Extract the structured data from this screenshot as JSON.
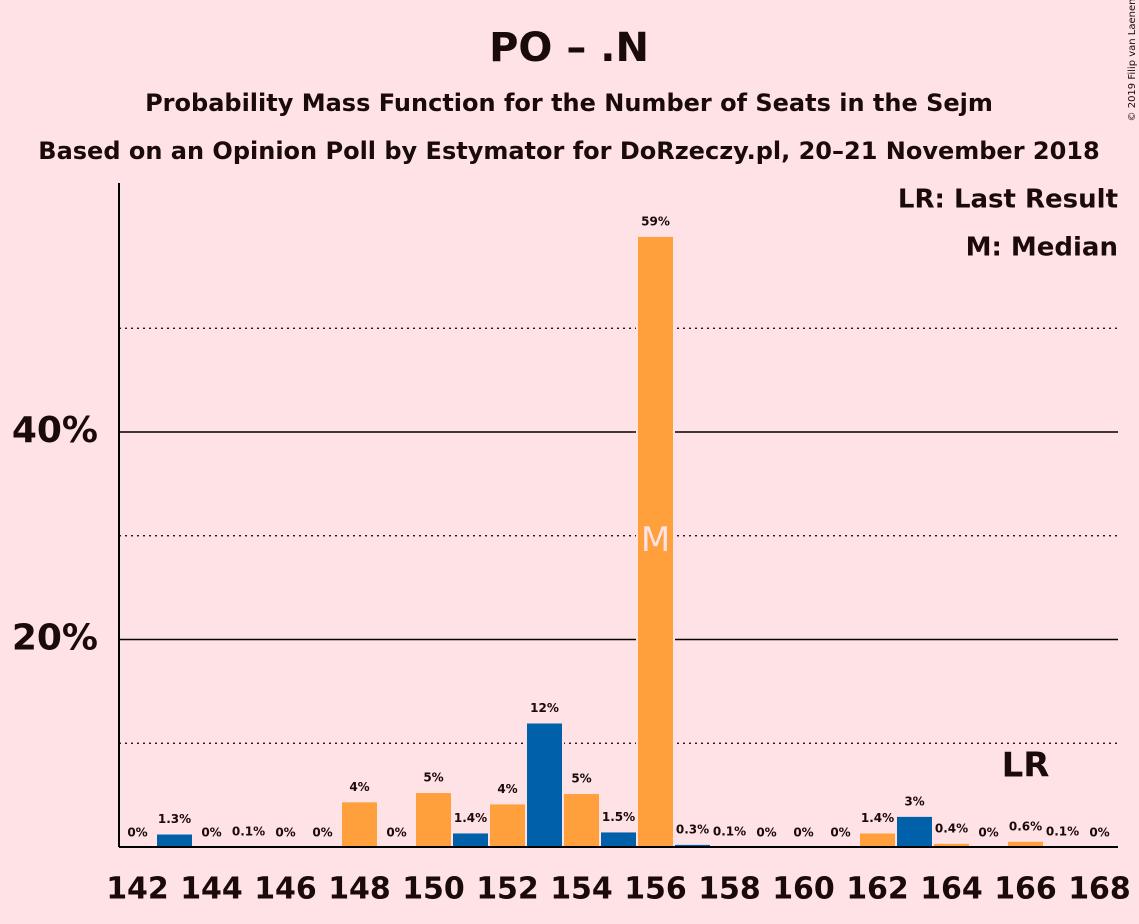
{
  "chart_data": {
    "type": "bar",
    "title": "PO – .N",
    "subtitle": "Probability Mass Function for the Number of Seats in the Sejm",
    "subtitle2": "Based on an Opinion Poll by Estymator for DoRzeczy.pl, 20–21 November 2018",
    "copyright": "© 2019 Filip van Laenen",
    "legend": [
      "LR: Last Result",
      "M: Median"
    ],
    "categories": [
      142,
      null,
      144,
      null,
      146,
      null,
      148,
      null,
      150,
      null,
      152,
      null,
      154,
      null,
      156,
      null,
      158,
      null,
      160,
      null,
      162,
      null,
      164,
      null,
      166,
      null,
      168
    ],
    "values": [
      0,
      1.3,
      0,
      0.1,
      0,
      0,
      4.4,
      0,
      5.3,
      1.4,
      4.2,
      12,
      5.2,
      1.5,
      58.9,
      0.3,
      0.1,
      0,
      0,
      0,
      1.4,
      3,
      0.4,
      0,
      0.6,
      0.1,
      0
    ],
    "value_labels": [
      "0%",
      "1.3%",
      "0%",
      "0.1%",
      "0%",
      "0%",
      "4%",
      "0%",
      "5%",
      "1.4%",
      "4%",
      "12%",
      "5%",
      "1.5%",
      "59%",
      "0.3%",
      "0.1%",
      "0%",
      "0%",
      "0%",
      "1.4%",
      "3%",
      "0.4%",
      "0%",
      "0.6%",
      "0.1%",
      "0%"
    ],
    "colors": [
      "#ffa03c",
      "#0060aa",
      "#ffa03c",
      "#0060aa",
      "#ffa03c",
      "#0060aa",
      "#ffa03c",
      "#0060aa",
      "#ffa03c",
      "#0060aa",
      "#ffa03c",
      "#0060aa",
      "#ffa03c",
      "#0060aa",
      "#ffa03c",
      "#0060aa",
      "#ffa03c",
      "#0060aa",
      "#ffa03c",
      "#0060aa",
      "#ffa03c",
      "#0060aa",
      "#ffa03c",
      "#0060aa",
      "#ffa03c",
      "#0060aa",
      "#ffa03c"
    ],
    "median": {
      "label": "M",
      "index": 14
    },
    "last_result": {
      "label": "LR",
      "index": 24
    },
    "ylim": [
      0,
      64
    ],
    "yticks": [
      {
        "value": 20,
        "label": "20%"
      },
      {
        "value": 40,
        "label": "40%"
      }
    ],
    "minor_yticks": [
      10,
      30,
      50
    ],
    "grid": true
  }
}
